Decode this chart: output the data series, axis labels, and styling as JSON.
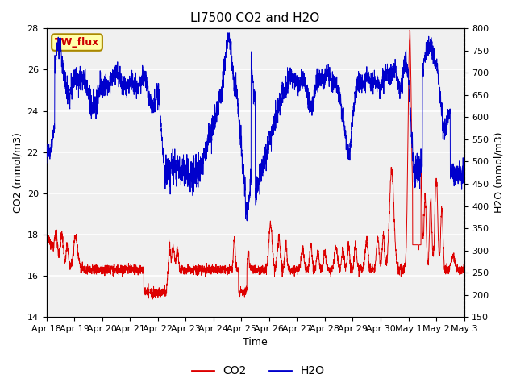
{
  "title": "LI7500 CO2 and H2O",
  "xlabel": "Time",
  "ylabel_left": "CO2 (mmol/m3)",
  "ylabel_right": "H2O (mmol/m3)",
  "xlim_start": 0,
  "xlim_end": 15,
  "ylim_left": [
    14,
    28
  ],
  "ylim_right": [
    150,
    800
  ],
  "yticks_left": [
    14,
    16,
    18,
    20,
    22,
    24,
    26,
    28
  ],
  "yticks_right": [
    150,
    200,
    250,
    300,
    350,
    400,
    450,
    500,
    550,
    600,
    650,
    700,
    750,
    800
  ],
  "xtick_labels": [
    "Apr 18",
    "Apr 19",
    "Apr 20",
    "Apr 21",
    "Apr 22",
    "Apr 23",
    "Apr 24",
    "Apr 25",
    "Apr 26",
    "Apr 27",
    "Apr 28",
    "Apr 29",
    "Apr 30",
    "May 1",
    "May 2",
    "May 3"
  ],
  "co2_color": "#dd0000",
  "h2o_color": "#0000cc",
  "background_color": "#ffffff",
  "plot_bg_color": "#f0f0f0",
  "grid_color": "#ffffff",
  "annotation_text": "TW_flux",
  "title_fontsize": 11,
  "label_fontsize": 9,
  "tick_fontsize": 8
}
